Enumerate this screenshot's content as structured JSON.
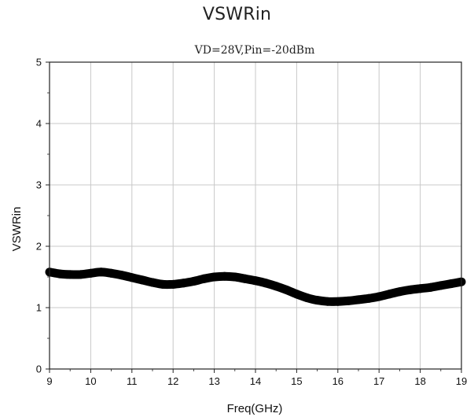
{
  "page": {
    "title": "VSWRin"
  },
  "chart_data": {
    "type": "line",
    "subtitle": "VD=28V,Pin=-20dBm",
    "xlabel": "Freq(GHz)",
    "ylabel": "VSWRin",
    "xlim": [
      9,
      19
    ],
    "ylim": [
      0,
      5
    ],
    "x_ticks": [
      9,
      10,
      11,
      12,
      13,
      14,
      15,
      16,
      17,
      18,
      19
    ],
    "y_ticks": [
      0,
      1,
      2,
      3,
      4,
      5
    ],
    "grid": true,
    "legend": "none",
    "series": [
      {
        "color": "#000000",
        "x": [
          9.0,
          9.25,
          9.5,
          9.75,
          10.0,
          10.25,
          10.5,
          10.75,
          11.0,
          11.25,
          11.5,
          11.75,
          12.0,
          12.25,
          12.5,
          12.75,
          13.0,
          13.25,
          13.5,
          13.75,
          14.0,
          14.25,
          14.5,
          14.75,
          15.0,
          15.25,
          15.5,
          15.75,
          16.0,
          16.25,
          16.5,
          16.75,
          17.0,
          17.25,
          17.5,
          17.75,
          18.0,
          18.25,
          18.5,
          18.75,
          19.0
        ],
        "values": [
          1.58,
          1.55,
          1.54,
          1.54,
          1.56,
          1.58,
          1.56,
          1.53,
          1.49,
          1.45,
          1.41,
          1.38,
          1.38,
          1.4,
          1.43,
          1.47,
          1.5,
          1.51,
          1.5,
          1.47,
          1.44,
          1.4,
          1.35,
          1.29,
          1.22,
          1.16,
          1.12,
          1.1,
          1.1,
          1.11,
          1.13,
          1.15,
          1.18,
          1.22,
          1.26,
          1.29,
          1.31,
          1.33,
          1.36,
          1.39,
          1.42
        ]
      }
    ]
  }
}
